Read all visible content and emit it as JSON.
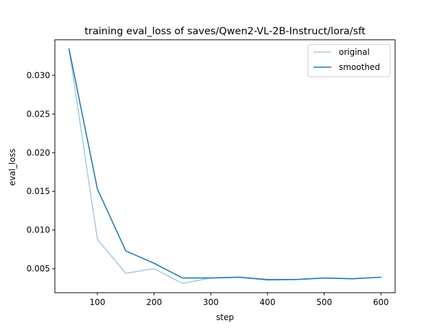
{
  "chart_data": {
    "type": "line",
    "title": "training eval_loss of saves/Qwen2-VL-2B-Instruct/lora/sft",
    "xlabel": "step",
    "ylabel": "eval_loss",
    "xlim": [
      25,
      625
    ],
    "ylim": [
      0.0019,
      0.0346
    ],
    "xticks": [
      100,
      200,
      300,
      400,
      500,
      600
    ],
    "yticks": [
      0.005,
      0.01,
      0.015,
      0.02,
      0.025,
      0.03
    ],
    "ytick_labels": [
      "0.005",
      "0.010",
      "0.015",
      "0.020",
      "0.025",
      "0.030"
    ],
    "grid": false,
    "legend_position": "top-right",
    "x": [
      50,
      100,
      150,
      200,
      250,
      300,
      350,
      400,
      450,
      500,
      550,
      600
    ],
    "series": [
      {
        "name": "original",
        "color": "#a6cbe3",
        "values": [
          0.0334,
          0.0088,
          0.0044,
          0.005,
          0.0031,
          0.0038,
          0.0039,
          0.0035,
          0.0036,
          0.0038,
          0.0037,
          0.0039
        ]
      },
      {
        "name": "smoothed",
        "color": "#1f77b4",
        "values": [
          0.0334,
          0.0153,
          0.0073,
          0.0057,
          0.0038,
          0.0038,
          0.0039,
          0.0036,
          0.0036,
          0.0038,
          0.0037,
          0.0039
        ]
      }
    ]
  }
}
